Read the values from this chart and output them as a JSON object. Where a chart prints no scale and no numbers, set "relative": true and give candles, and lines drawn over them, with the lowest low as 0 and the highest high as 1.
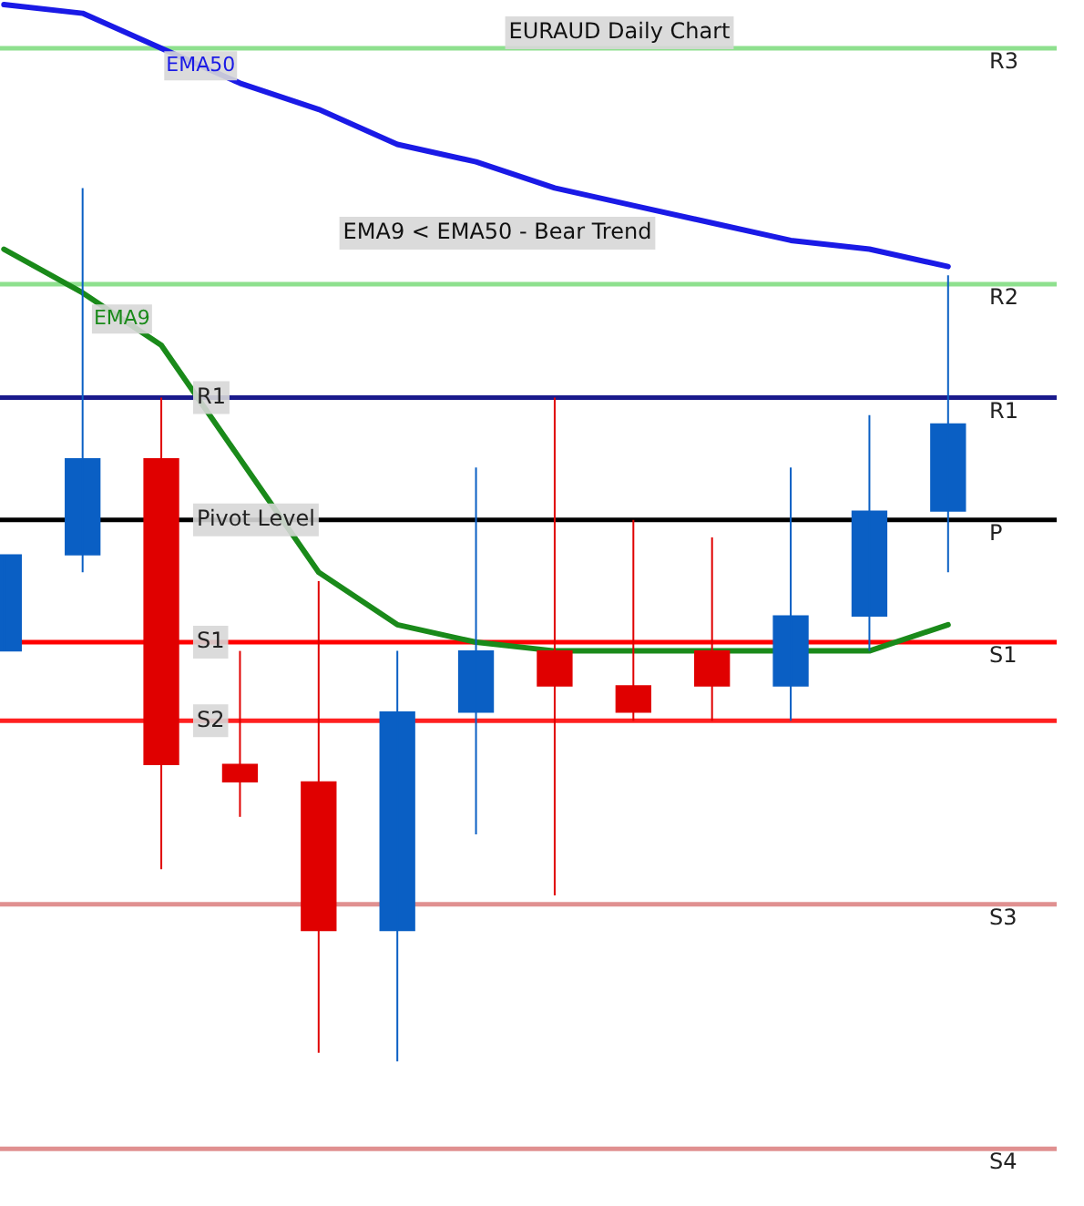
{
  "chart_data": {
    "type": "candlestick",
    "title": "EURAUD Daily Chart",
    "relative": true,
    "categories": [
      null,
      null,
      null,
      null,
      null,
      null,
      null,
      null,
      null,
      null,
      null,
      null,
      null
    ],
    "ohlc": [
      [
        0.47,
        0.58,
        0.47,
        0.58
      ],
      [
        0.58,
        1.0,
        0.56,
        0.69
      ],
      [
        0.69,
        0.76,
        0.22,
        0.34
      ],
      [
        0.34,
        0.47,
        0.28,
        0.32
      ],
      [
        0.32,
        0.55,
        0.01,
        0.15
      ],
      [
        0.15,
        0.47,
        0,
        0.4
      ],
      [
        0.4,
        0.68,
        0.26,
        0.47
      ],
      [
        0.47,
        0.76,
        0.19,
        0.43
      ],
      [
        0.43,
        0.62,
        0.39,
        0.4
      ],
      [
        0.47,
        0.6,
        0.39,
        0.43
      ],
      [
        0.43,
        0.68,
        0.39,
        0.51
      ],
      [
        0.51,
        0.74,
        0.47,
        0.63
      ],
      [
        0.63,
        0.9,
        0.56,
        0.73
      ]
    ],
    "colors": [
      "#0a5fc4",
      "#0a5fc4",
      "#e00000",
      "#e00000",
      "#e00000",
      "#0a5fc4",
      "#0a5fc4",
      "#e00000",
      "#e00000",
      "#e00000",
      "#0a5fc4",
      "#0a5fc4",
      "#0a5fc4"
    ],
    "series": [
      {
        "name": "EMA50",
        "type": "line",
        "color": "#1a1ae6",
        "values": [
          1.21,
          1.2,
          1.16,
          1.12,
          1.09,
          1.05,
          1.03,
          1.0,
          0.98,
          0.96,
          0.94,
          0.93,
          0.91
        ]
      },
      {
        "name": "EMA9",
        "type": "line",
        "color": "#1a8a1a",
        "values": [
          0.93,
          0.88,
          0.82,
          0.69,
          0.56,
          0.5,
          0.48,
          0.47,
          0.47,
          0.47,
          null,
          0.47,
          0.5
        ]
      }
    ],
    "ref_lines": [
      {
        "axis": "y",
        "value": 0.76,
        "label": "R1",
        "color": "#1a1a8c"
      },
      {
        "axis": "y",
        "value": 0.62,
        "label": "Pivot Level",
        "color": "#000000"
      },
      {
        "axis": "y",
        "value": 0.48,
        "label": "S1",
        "color": "#ff0000"
      },
      {
        "axis": "y",
        "value": 0.39,
        "label": "S2",
        "color": "#ff2020"
      },
      {
        "axis": "y",
        "value": 1.16,
        "color": "#8ee08e"
      },
      {
        "axis": "y",
        "value": 0.89,
        "color": "#8ee08e"
      },
      {
        "axis": "y",
        "value": 0.18,
        "color": "#e09090"
      },
      {
        "axis": "y",
        "value": -0.1,
        "color": "#e09090"
      }
    ],
    "annotations": [
      "EMA9 < EMA50 - Bear Trend",
      {
        "text": "R3",
        "y": 1.16
      },
      {
        "text": "R2",
        "y": 0.89
      },
      {
        "text": "R1",
        "y": 0.76
      },
      {
        "text": "P",
        "y": 0.62
      },
      {
        "text": "S1",
        "y": 0.48
      },
      {
        "text": "S3",
        "y": 0.18
      },
      {
        "text": "S4",
        "y": -0.1
      }
    ]
  }
}
